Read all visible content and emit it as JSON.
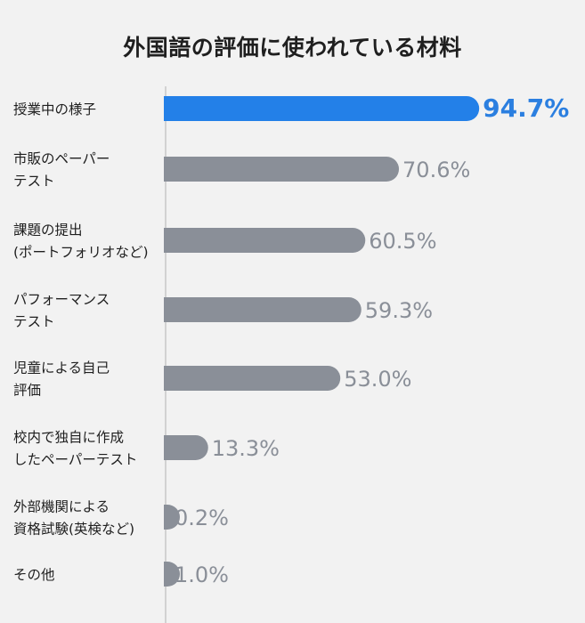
{
  "chart_data": {
    "type": "bar",
    "orientation": "horizontal",
    "title": "外国語の評価に使われている材料",
    "categories": [
      [
        "授業中の様子"
      ],
      [
        "市販のペーパー",
        "テスト"
      ],
      [
        "課題の提出",
        "(ポートフォリオなど)"
      ],
      [
        "パフォーマンス",
        "テスト"
      ],
      [
        "児童による自己",
        "評価"
      ],
      [
        "校内で独自に作成",
        "したペーパーテスト"
      ],
      [
        "外部機関による",
        "資格試験(英検など)"
      ],
      [
        "その他"
      ]
    ],
    "values": [
      94.7,
      70.6,
      60.5,
      59.3,
      53.0,
      13.3,
      0.2,
      1.0
    ],
    "value_labels": [
      "94.7%",
      "70.6%",
      "60.5%",
      "59.3%",
      "53.0%",
      "13.3%",
      "0.2%",
      "1.0%"
    ],
    "xlim": [
      0,
      100
    ],
    "highlight_index": 0,
    "colors": {
      "highlight": "#2380e8",
      "bar": "#8a8f98",
      "axis": "#c8c8c8",
      "background": "#f2f2f2"
    }
  }
}
